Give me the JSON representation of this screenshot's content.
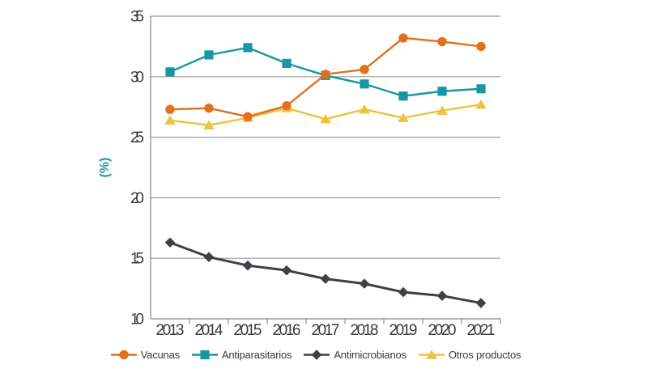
{
  "chart_data": {
    "type": "line",
    "title": "",
    "xlabel": "",
    "ylabel": "(%)",
    "categories": [
      "2013",
      "2014",
      "2015",
      "2016",
      "2017",
      "2018",
      "2019",
      "2020",
      "2021"
    ],
    "ylim": [
      10,
      35
    ],
    "yticks": [
      10,
      15,
      20,
      25,
      30,
      35
    ],
    "grid": "horizontal",
    "legend_position": "bottom",
    "series": [
      {
        "name": "Vacunas",
        "color": "#E2711E",
        "marker": "circle",
        "values": [
          27.3,
          27.4,
          26.7,
          27.6,
          30.2,
          30.6,
          33.2,
          32.9,
          32.5
        ]
      },
      {
        "name": "Antiparasitarios",
        "color": "#1796A4",
        "marker": "square",
        "values": [
          30.4,
          31.8,
          32.4,
          31.1,
          30.1,
          29.4,
          28.4,
          28.8,
          29.0
        ]
      },
      {
        "name": "Antimicrobianos",
        "color": "#3F3F45",
        "marker": "diamond",
        "values": [
          16.3,
          15.1,
          14.4,
          14.0,
          13.3,
          12.9,
          12.2,
          11.9,
          11.3
        ]
      },
      {
        "name": "Otros productos",
        "color": "#EFC13C",
        "marker": "triangle",
        "values": [
          26.4,
          26.0,
          26.6,
          27.4,
          26.5,
          27.3,
          26.6,
          27.2,
          27.7
        ]
      }
    ]
  },
  "colors": {
    "background": "#FFFFFF",
    "axis_line": "#969696",
    "grid_line": "#9B9B9B",
    "tick_text": "#3A3A3A",
    "ylabel_text": "#1796A4"
  }
}
